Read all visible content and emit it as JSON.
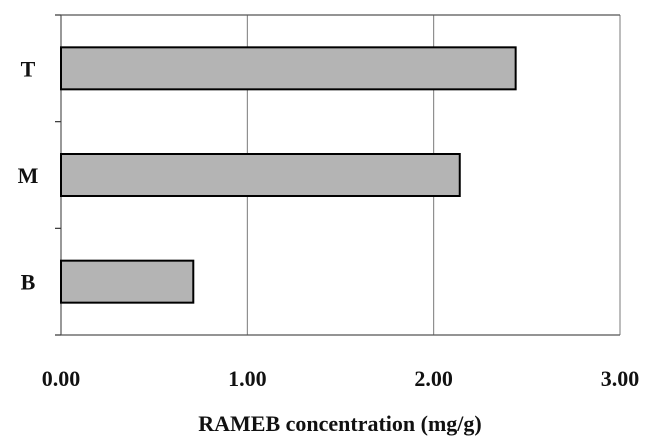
{
  "chart_data": {
    "type": "bar",
    "orientation": "horizontal",
    "categories": [
      "T",
      "M",
      "B"
    ],
    "values": [
      2.44,
      2.14,
      0.71
    ],
    "xlabel": "RAMEB concentration (mg/g)",
    "ylabel": "",
    "xlim": [
      0,
      3
    ],
    "x_ticks": [
      "0.00",
      "1.00",
      "2.00",
      "3.00"
    ],
    "grid": true,
    "legend": "none",
    "bar_color": "#b4b4b4",
    "bar_edge_color": "#000000"
  }
}
